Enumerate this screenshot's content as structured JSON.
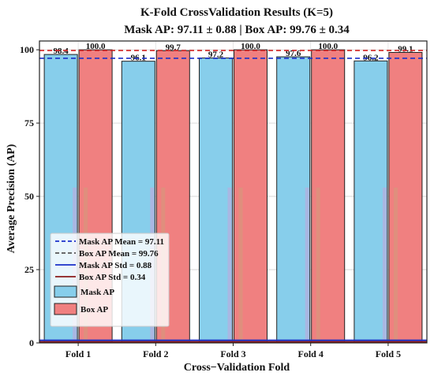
{
  "chart_data": {
    "type": "bar",
    "title": "K-Fold CrossValidation Results (K=5)",
    "subtitle": "Mask AP: 97.11 ± 0.88 | Box AP: 99.76 ± 0.34",
    "xlabel": "Cross−Validation Fold",
    "ylabel": "Average Precision (AP)",
    "ylim": [
      0,
      103
    ],
    "yticks": [
      0,
      25,
      50,
      75,
      100
    ],
    "categories": [
      "Fold 1",
      "Fold 2",
      "Fold 3",
      "Fold 4",
      "Fold 5"
    ],
    "series": [
      {
        "name": "Mask AP",
        "values": [
          98.4,
          96.1,
          97.2,
          97.6,
          96.2
        ],
        "labels": [
          "98.4",
          "96.1",
          "97.2",
          "97.6",
          "96.2"
        ],
        "color": "#87CEEB"
      },
      {
        "name": "Box AP",
        "values": [
          100.0,
          99.7,
          100.0,
          100.0,
          99.1
        ],
        "labels": [
          "100.0",
          "99.7",
          "100.0",
          "100.0",
          "99.1"
        ],
        "color": "#F08080"
      }
    ],
    "reference_lines": [
      {
        "name": "Mask AP Mean = 97.11",
        "value": 97.11,
        "color": "#1a2fc9",
        "style": "dashed"
      },
      {
        "name": "Box AP Mean = 99.76",
        "value": 99.76,
        "color": "#d62728",
        "style": "dashed"
      },
      {
        "name": "Mask AP Std = 0.88",
        "value": 0.88,
        "color": "#1a2fc9",
        "style": "solid"
      },
      {
        "name": "Box AP Std = 0.34",
        "value": 0.34,
        "color": "#8b1a1a",
        "style": "solid"
      }
    ],
    "legend_order": [
      {
        "label": "Mask AP Mean = 97.11",
        "kind": "line",
        "color": "#1a2fc9",
        "style": "dashed"
      },
      {
        "label": "Box AP Mean = 99.76",
        "kind": "line",
        "color": "#555555",
        "style": "dashed"
      },
      {
        "label": "Mask AP Std = 0.88",
        "kind": "line",
        "color": "#1a2fc9",
        "style": "solid"
      },
      {
        "label": "Box AP Std = 0.34",
        "kind": "line",
        "color": "#8b1a1a",
        "style": "solid"
      },
      {
        "label": "Mask AP",
        "kind": "patch",
        "color": "#87CEEB"
      },
      {
        "label": "Box AP",
        "kind": "patch",
        "color": "#F08080"
      }
    ],
    "legend_position": "lower-left",
    "grid": true
  }
}
